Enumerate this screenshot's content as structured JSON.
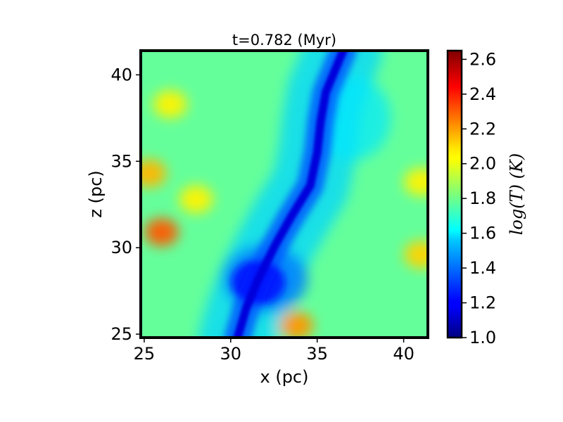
{
  "chart_data": {
    "type": "heatmap",
    "title": "t=0.782 (Myr)",
    "xlabel": "x (pc)",
    "ylabel": "z (pc)",
    "xlim": [
      24.8,
      41.4
    ],
    "ylim": [
      24.8,
      41.4
    ],
    "xticks": [
      "25",
      "30",
      "35",
      "40"
    ],
    "xtick_values": [
      25,
      30,
      35,
      40
    ],
    "yticks": [
      "25",
      "30",
      "35",
      "40"
    ],
    "ytick_values": [
      25,
      30,
      35,
      40
    ],
    "colormap": "jet",
    "colorbar": {
      "label": "log(T) (K)",
      "range": [
        1.0,
        2.65
      ],
      "ticks": [
        "1.0",
        "1.2",
        "1.4",
        "1.6",
        "1.8",
        "2.0",
        "2.2",
        "2.4",
        "2.6"
      ],
      "tick_values": [
        1.0,
        1.2,
        1.4,
        1.6,
        1.8,
        2.0,
        2.2,
        2.4,
        2.6
      ]
    },
    "field": {
      "background_value": 1.78,
      "filament_value": 1.15,
      "filament_path_pc": [
        [
          30.4,
          24.8
        ],
        [
          30.9,
          26.5
        ],
        [
          31.6,
          28.2
        ],
        [
          32.6,
          30.2
        ],
        [
          33.5,
          31.8
        ],
        [
          34.6,
          33.6
        ],
        [
          35.0,
          35.5
        ],
        [
          35.2,
          37.3
        ],
        [
          35.5,
          39.0
        ],
        [
          36.5,
          41.4
        ]
      ],
      "hot_spots": [
        {
          "x": 26.0,
          "y": 30.9,
          "value": 2.3
        },
        {
          "x": 25.3,
          "y": 34.3,
          "value": 2.15
        },
        {
          "x": 33.8,
          "y": 25.5,
          "value": 2.2
        },
        {
          "x": 41.0,
          "y": 29.6,
          "value": 2.1
        },
        {
          "x": 28.0,
          "y": 32.8,
          "value": 2.05
        },
        {
          "x": 26.5,
          "y": 38.3,
          "value": 2.05
        },
        {
          "x": 41.0,
          "y": 33.8,
          "value": 2.05
        }
      ]
    }
  }
}
